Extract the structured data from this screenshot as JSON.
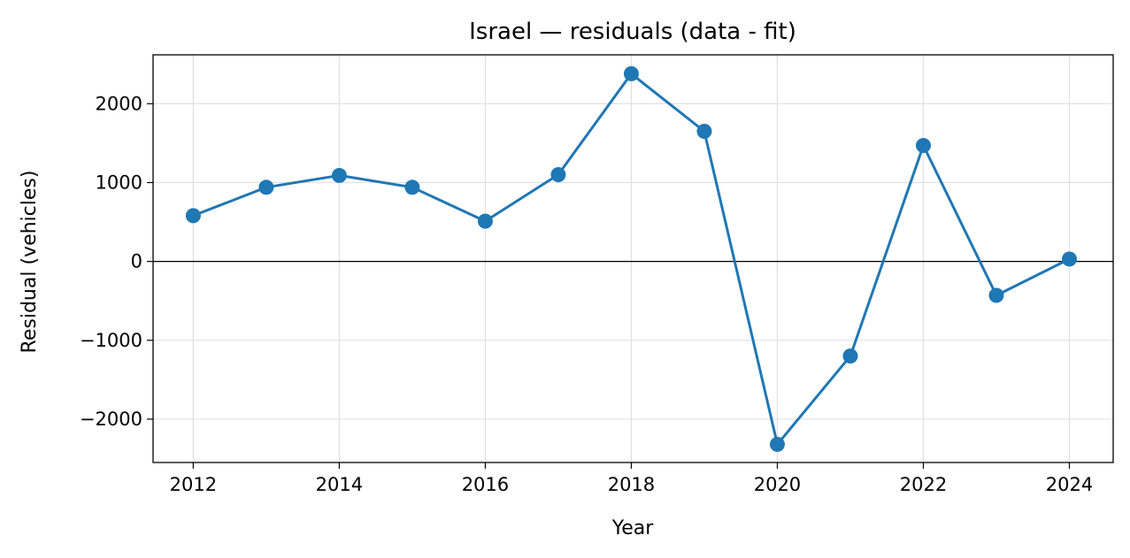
{
  "chart_data": {
    "type": "line",
    "title": "Israel — residuals (data - fit)",
    "xlabel": "Year",
    "ylabel": "Residual (vehicles)",
    "x": [
      2012,
      2013,
      2014,
      2015,
      2016,
      2017,
      2018,
      2019,
      2020,
      2021,
      2022,
      2023,
      2024
    ],
    "series": [
      {
        "values": [
          580,
          940,
          1090,
          940,
          510,
          1100,
          2380,
          1650,
          -2320,
          -1200,
          1470,
          -430,
          30
        ]
      }
    ],
    "xlim": [
      2011.45,
      2024.6
    ],
    "ylim": [
      -2550,
      2620
    ],
    "x_ticks": [
      2012,
      2014,
      2016,
      2018,
      2020,
      2022,
      2024
    ],
    "x_tick_labels": [
      "2012",
      "2014",
      "2016",
      "2018",
      "2020",
      "2022",
      "2024"
    ],
    "y_ticks": [
      -2000,
      -1000,
      0,
      1000,
      2000
    ],
    "y_tick_labels": [
      "−2000",
      "−1000",
      "0",
      "1000",
      "2000"
    ],
    "grid": true,
    "zero_line": true,
    "colors": {
      "series": "#1f77b4",
      "zero_line": "#000000",
      "grid": "#e0e0e0"
    }
  }
}
